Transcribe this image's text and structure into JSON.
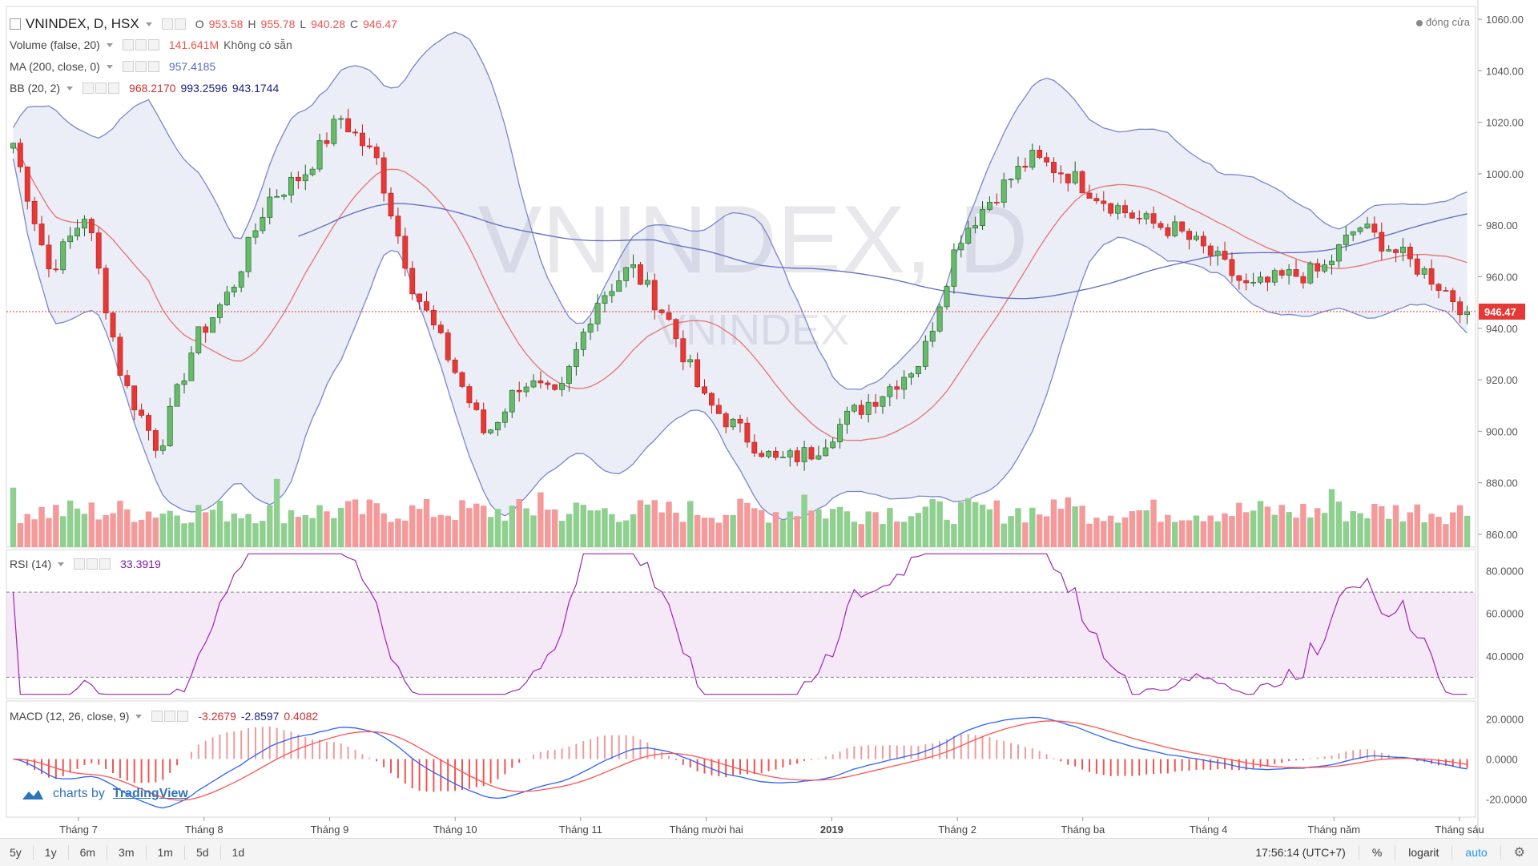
{
  "header": {
    "symbol": "VNINDEX, D, HSX",
    "ohlc": {
      "o_label": "O",
      "o": "953.58",
      "h_label": "H",
      "h": "955.78",
      "l_label": "L",
      "l": "940.28",
      "c_label": "C",
      "c": "946.47"
    },
    "market_status": "đóng cửa"
  },
  "watermark": {
    "main": "VNINDEX, D",
    "sub": "VNINDEX"
  },
  "indicators": {
    "volume": {
      "name": "Volume (false, 20)",
      "value": "141.641M",
      "extra": "Không có sẵn"
    },
    "ma": {
      "name": "MA (200, close, 0)",
      "value": "957.4185"
    },
    "bb": {
      "name": "BB (20, 2)",
      "v1": "968.2170",
      "v2": "993.2596",
      "v3": "943.1744"
    },
    "rsi": {
      "name": "RSI (14)",
      "value": "33.3919"
    },
    "macd": {
      "name": "MACD (12, 26, close, 9)",
      "v1": "-3.2679",
      "v2": "-2.8597",
      "v3": "0.4082"
    }
  },
  "price_axis": {
    "ticks": [
      "1060.00",
      "1040.00",
      "1020.00",
      "1000.00",
      "980.00",
      "960.00",
      "940.00",
      "920.00",
      "900.00",
      "880.00",
      "860.00"
    ],
    "last_price": "946.47"
  },
  "rsi_axis": {
    "ticks": [
      "80.0000",
      "60.0000",
      "40.0000"
    ]
  },
  "macd_axis": {
    "ticks": [
      "20.0000",
      "0.0000",
      "-20.0000"
    ]
  },
  "time_axis": {
    "labels": [
      "Tháng 7",
      "Tháng 8",
      "Tháng 9",
      "Tháng 10",
      "Tháng 11",
      "Tháng mười hai",
      "2019",
      "Tháng 2",
      "Tháng ba",
      "Tháng 4",
      "Tháng năm",
      "Tháng sáu"
    ]
  },
  "branding": {
    "text": "charts by",
    "link": "TradingView"
  },
  "toolbar": {
    "timeframes": [
      "5y",
      "1y",
      "6m",
      "3m",
      "1m",
      "5d",
      "1d"
    ],
    "time": "17:56:14 (UTC+7)",
    "percent": "%",
    "log": "logarit",
    "auto": "auto"
  },
  "colors": {
    "up": "#26a69a",
    "down": "#ef5350",
    "bb_fill": "#7986cb",
    "ma": "#5c6bc0",
    "rsi": "#9c27b0",
    "macd": "#2962ff",
    "signal": "#ff5252"
  },
  "chart_data": {
    "type": "candlestick",
    "description_units": "price",
    "ylim": [
      855,
      1065
    ],
    "series_anchor_closes": [
      1012,
      962,
      985,
      920,
      893,
      935,
      955,
      990,
      1000,
      1022,
      1005,
      956,
      928,
      898,
      920,
      912,
      950,
      964,
      944,
      912,
      900,
      888,
      892,
      906,
      916,
      928,
      975,
      992,
      1006,
      1000,
      990,
      982,
      978,
      968,
      955,
      960,
      962,
      980,
      970,
      960,
      946.47
    ],
    "volume_ylim": [
      0,
      200
    ]
  }
}
